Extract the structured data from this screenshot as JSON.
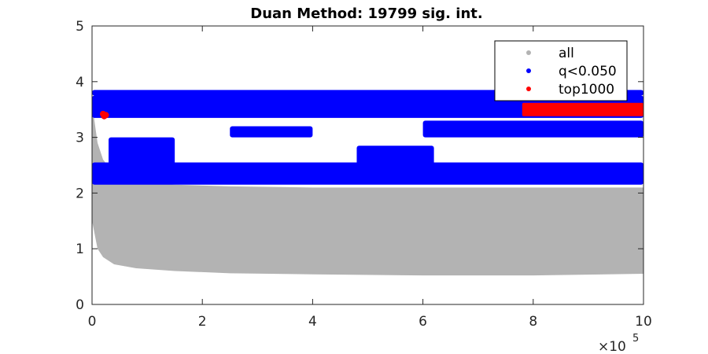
{
  "chart_data": {
    "type": "scatter",
    "title": "Duan Method: 19799 sig. int.",
    "xlabel": "",
    "ylabel": "",
    "xlim": [
      0,
      1000000
    ],
    "ylim": [
      0,
      5
    ],
    "x_ticks": [
      0,
      200000,
      400000,
      600000,
      800000,
      1000000
    ],
    "x_tick_labels": [
      "0",
      "2",
      "4",
      "6",
      "8",
      "10"
    ],
    "x_exponent_label": "×10",
    "x_exponent_power": "5",
    "y_ticks": [
      0,
      1,
      2,
      3,
      4,
      5
    ],
    "y_tick_labels": [
      "0",
      "1",
      "2",
      "3",
      "4",
      "5"
    ],
    "grid": false,
    "legend_position": "top-right",
    "series": [
      {
        "name": "all",
        "color": "#b3b3b3",
        "lower_envelope": [
          [
            0,
            1.5
          ],
          [
            10000,
            1.0
          ],
          [
            20000,
            0.85
          ],
          [
            40000,
            0.72
          ],
          [
            80000,
            0.65
          ],
          [
            150000,
            0.6
          ],
          [
            250000,
            0.56
          ],
          [
            400000,
            0.54
          ],
          [
            600000,
            0.52
          ],
          [
            800000,
            0.52
          ],
          [
            1000000,
            0.55
          ]
        ],
        "upper_envelope": [
          [
            0,
            3.6
          ],
          [
            10000,
            2.9
          ],
          [
            20000,
            2.6
          ],
          [
            40000,
            2.35
          ],
          [
            80000,
            2.2
          ],
          [
            150000,
            2.15
          ],
          [
            250000,
            2.12
          ],
          [
            400000,
            2.1
          ],
          [
            600000,
            2.1
          ],
          [
            800000,
            2.1
          ],
          [
            1000000,
            2.1
          ]
        ]
      },
      {
        "name": "q<0.050",
        "color": "#0000ff",
        "bands": [
          {
            "x": [
              0,
              1000000
            ],
            "y": [
              3.35,
              3.75
            ]
          },
          {
            "x": [
              0,
              1000000
            ],
            "y": [
              3.75,
              3.85
            ]
          },
          {
            "x": [
              0,
              1000000
            ],
            "y": [
              2.15,
              2.55
            ]
          },
          {
            "x": [
              250000,
              400000
            ],
            "y": [
              3.0,
              3.2
            ]
          },
          {
            "x": [
              480000,
              620000
            ],
            "y": [
              2.5,
              2.85
            ]
          },
          {
            "x": [
              30000,
              150000
            ],
            "y": [
              2.4,
              3.0
            ]
          },
          {
            "x": [
              600000,
              1000000
            ],
            "y": [
              3.0,
              3.3
            ]
          }
        ]
      },
      {
        "name": "top1000",
        "color": "#ff0000",
        "points": [
          [
            20000,
            3.42
          ],
          [
            25000,
            3.4
          ],
          [
            22000,
            3.38
          ]
        ],
        "band": {
          "x": [
            780000,
            1000000
          ],
          "y": [
            3.38,
            3.62
          ]
        }
      }
    ]
  }
}
